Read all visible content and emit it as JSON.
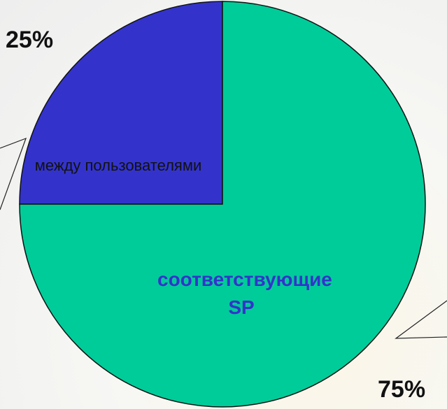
{
  "chart_data": {
    "type": "pie",
    "categories": [
      "между пользователями",
      "соответствующие SP"
    ],
    "values": [
      25,
      75
    ],
    "value_labels": [
      "25%",
      "75%"
    ],
    "colors": [
      "#3333cc",
      "#00cc99"
    ]
  }
}
